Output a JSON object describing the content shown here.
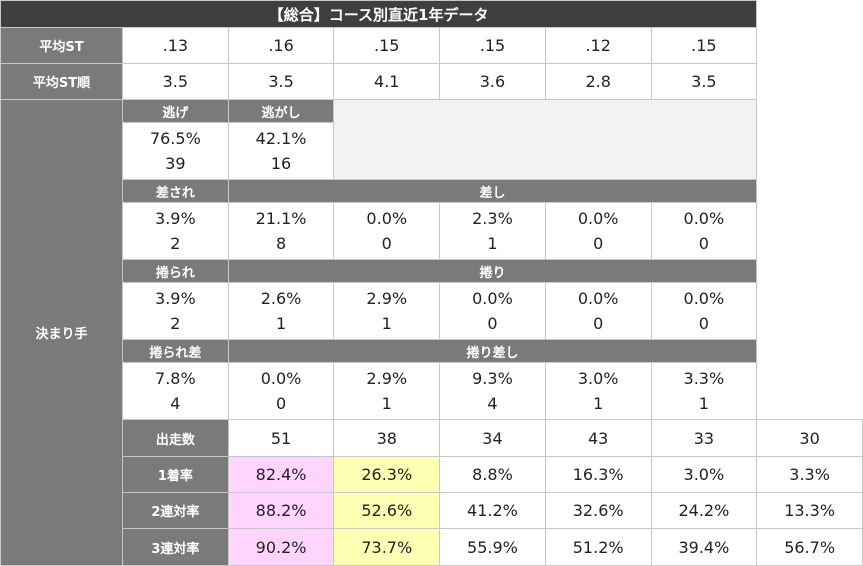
{
  "title": "【総合】コース別直近1年データ",
  "avg_st": {
    "label": "平均ST",
    "values": [
      ".13",
      ".16",
      ".15",
      ".15",
      ".12",
      ".15"
    ]
  },
  "avg_st_rank": {
    "label": "平均ST順",
    "values": [
      "3.5",
      "3.5",
      "4.1",
      "3.6",
      "2.8",
      "3.5"
    ]
  },
  "kimarite": {
    "label": "決まり手",
    "nige": {
      "c1_label": "逃げ",
      "c2_label": "逃がし",
      "c1": {
        "pct": "76.5%",
        "count": "39"
      },
      "c2": {
        "pct": "42.1%",
        "count": "16"
      }
    },
    "sasare": {
      "c1_label": "差され",
      "rest_label": "差し",
      "pct": [
        "3.9%",
        "21.1%",
        "0.0%",
        "2.3%",
        "0.0%",
        "0.0%"
      ],
      "count": [
        "2",
        "8",
        "0",
        "1",
        "0",
        "0"
      ]
    },
    "makurare": {
      "c1_label": "捲られ",
      "rest_label": "捲り",
      "pct": [
        "3.9%",
        "2.6%",
        "2.9%",
        "0.0%",
        "0.0%",
        "0.0%"
      ],
      "count": [
        "2",
        "1",
        "1",
        "0",
        "0",
        "0"
      ]
    },
    "makurisashi": {
      "c1_label": "捲られ差",
      "rest_label": "捲り差し",
      "pct": [
        "7.8%",
        "0.0%",
        "2.9%",
        "9.3%",
        "3.0%",
        "3.3%"
      ],
      "count": [
        "4",
        "0",
        "1",
        "4",
        "1",
        "1"
      ]
    }
  },
  "starts": {
    "label": "出走数",
    "values": [
      "51",
      "38",
      "34",
      "43",
      "33",
      "30"
    ]
  },
  "win_rate": {
    "label": "1着率",
    "values": [
      "82.4%",
      "26.3%",
      "8.8%",
      "16.3%",
      "3.0%",
      "3.3%"
    ]
  },
  "quinella_rate": {
    "label": "2連対率",
    "values": [
      "88.2%",
      "52.6%",
      "41.2%",
      "32.6%",
      "24.2%",
      "13.3%"
    ]
  },
  "trio_rate": {
    "label": "3連対率",
    "values": [
      "90.2%",
      "73.7%",
      "55.9%",
      "51.2%",
      "39.4%",
      "56.7%"
    ]
  },
  "colors": {
    "highlight_first": "#ffd4ff",
    "highlight_second": "#ffffb3",
    "header": "#7a7a7a",
    "title": "#3f3f3f"
  }
}
